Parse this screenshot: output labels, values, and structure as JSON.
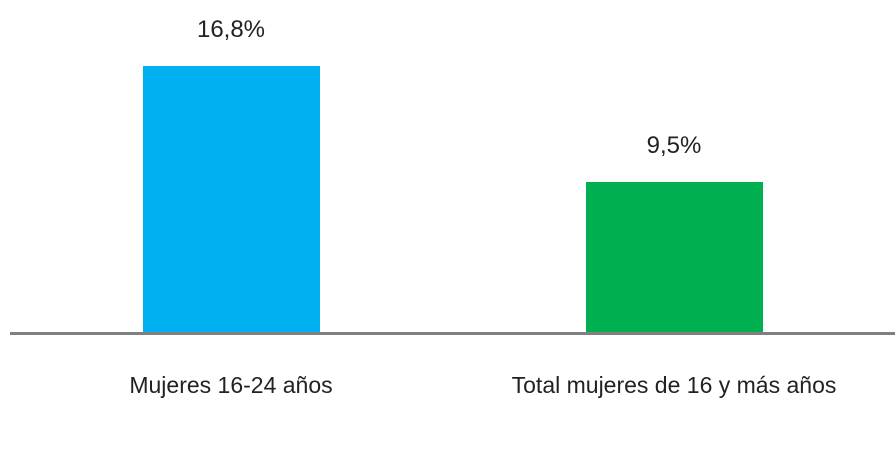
{
  "chart_data": {
    "type": "bar",
    "categories": [
      "Mujeres 16-24 años",
      "Total mujeres de 16 y más años"
    ],
    "values": [
      16.8,
      9.5
    ],
    "value_labels": [
      "16,8%",
      "9,5%"
    ],
    "colors": [
      "#00b0f0",
      "#00b050"
    ]
  }
}
